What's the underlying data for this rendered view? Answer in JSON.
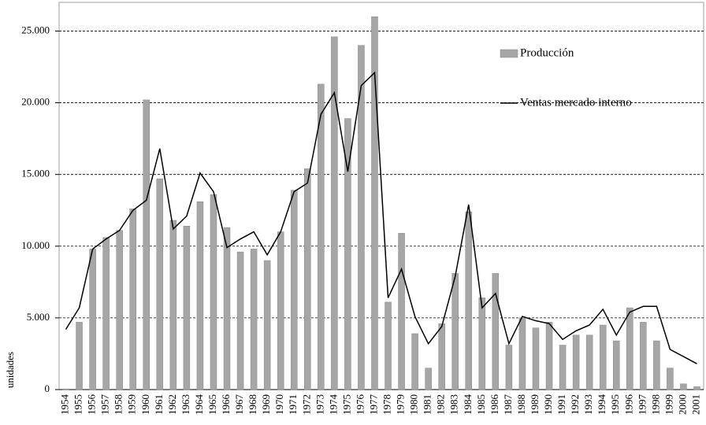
{
  "chart_data": {
    "type": "bar",
    "y_label": "unidades",
    "categories": [
      "1954",
      "1955",
      "1956",
      "1957",
      "1958",
      "1959",
      "1960",
      "1961",
      "1962",
      "1963",
      "1964",
      "1965",
      "1966",
      "1967",
      "1968",
      "1969",
      "1970",
      "1971",
      "1972",
      "1973",
      "1974",
      "1975",
      "1976",
      "1977",
      "1978",
      "1979",
      "1980",
      "1981",
      "1982",
      "1983",
      "1984",
      "1985",
      "1986",
      "1987",
      "1988",
      "1989",
      "1990",
      "1991",
      "1992",
      "1993",
      "1994",
      "1995",
      "1996",
      "1997",
      "1998",
      "1999",
      "2000",
      "2001"
    ],
    "series": [
      {
        "name": "Producción",
        "type": "bar",
        "color": "#a6a6a6",
        "values": [
          50,
          4700,
          9800,
          10600,
          11100,
          12600,
          20200,
          14700,
          11800,
          11400,
          13100,
          13600,
          11300,
          9600,
          9800,
          9000,
          11000,
          13900,
          15400,
          21300,
          24600,
          18900,
          24000,
          26000,
          6100,
          10900,
          3900,
          1500,
          4600,
          8100,
          12400,
          6400,
          8100,
          3100,
          5000,
          4300,
          4700,
          3100,
          3800,
          3800,
          4500,
          3400,
          5700,
          4700,
          3400,
          1500,
          400,
          200
        ]
      },
      {
        "name": "Ventas mercado interno",
        "type": "line",
        "color": "#000000",
        "values": [
          4200,
          5700,
          9800,
          10500,
          11100,
          12500,
          13200,
          16800,
          11200,
          12100,
          15100,
          13800,
          9900,
          10500,
          11000,
          9400,
          11000,
          13800,
          14400,
          19200,
          20700,
          15200,
          21200,
          22100,
          6400,
          8400,
          5100,
          3200,
          4400,
          7900,
          12900,
          5700,
          6700,
          3200,
          5100,
          4800,
          4600,
          3500,
          4100,
          4500,
          5600,
          3800,
          5400,
          5800,
          5800,
          2800,
          2300,
          1800
        ]
      }
    ],
    "ylim": [
      0,
      27000
    ],
    "yticks": [
      0,
      {
        "value": 5000,
        "label": "5.000"
      },
      {
        "value": 10000,
        "label": "10.000"
      },
      {
        "value": 15000,
        "label": "15.000"
      },
      {
        "value": 20000,
        "label": "20.000"
      },
      {
        "value": 25000,
        "label": "25.000"
      }
    ],
    "grid": true,
    "legend": "upper right"
  }
}
